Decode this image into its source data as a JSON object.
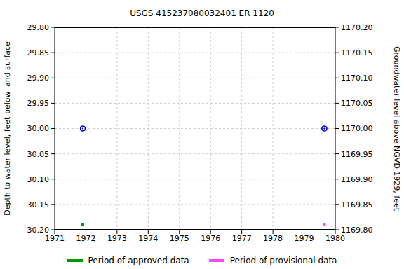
{
  "chart_data": {
    "type": "scatter",
    "title": "USGS 415237080032401 ER  1120",
    "x_label": "",
    "y_label": "Depth to water level, feet below land surface",
    "y2_label": "Groundwater level above NGVD 1929, feet",
    "xlim": [
      1971,
      1980
    ],
    "xticks": [
      1971,
      1972,
      1973,
      1974,
      1975,
      1976,
      1977,
      1978,
      1979,
      1980
    ],
    "ylim": [
      30.2,
      29.8
    ],
    "yticks": [
      {
        "value": 29.8,
        "label": "29.80"
      },
      {
        "value": 29.85,
        "label": "29.85"
      },
      {
        "value": 29.9,
        "label": "29.90"
      },
      {
        "value": 29.95,
        "label": "29.95"
      },
      {
        "value": 30.0,
        "label": "30.00"
      },
      {
        "value": 30.05,
        "label": "30.05"
      },
      {
        "value": 30.1,
        "label": "30.10"
      },
      {
        "value": 30.15,
        "label": "30.15"
      },
      {
        "value": 30.2,
        "label": "30.20"
      }
    ],
    "y2lim": [
      1169.8,
      1170.2
    ],
    "y2ticks": [
      {
        "value": 1169.8,
        "label": "1169.80"
      },
      {
        "value": 1169.85,
        "label": "1169.85"
      },
      {
        "value": 1169.9,
        "label": "1169.90"
      },
      {
        "value": 1169.95,
        "label": "1169.95"
      },
      {
        "value": 1170.0,
        "label": "1170.00"
      },
      {
        "value": 1170.05,
        "label": "1170.05"
      },
      {
        "value": 1170.1,
        "label": "1170.10"
      },
      {
        "value": 1170.15,
        "label": "1170.15"
      },
      {
        "value": 1170.2,
        "label": "1170.20"
      }
    ],
    "grid": true,
    "series": [
      {
        "x": [
          1971.9,
          1979.65
        ],
        "values": [
          30.0,
          30.0
        ],
        "color": "#0000cc",
        "marker": "circle"
      },
      {
        "x": [
          1971.9,
          1979.65
        ],
        "values": [
          1170.0,
          1170.0
        ],
        "color": "#0000cc",
        "marker": "circle",
        "axis": "y2"
      },
      {
        "name": "Period of approved data",
        "x": [
          1971.9
        ],
        "values": [
          30.19
        ],
        "color": "#009900",
        "marker": "square"
      },
      {
        "name": "Period of provisional data",
        "x": [
          1979.65
        ],
        "values": [
          30.19
        ],
        "color": "#ff44ff",
        "marker": "square"
      }
    ]
  }
}
